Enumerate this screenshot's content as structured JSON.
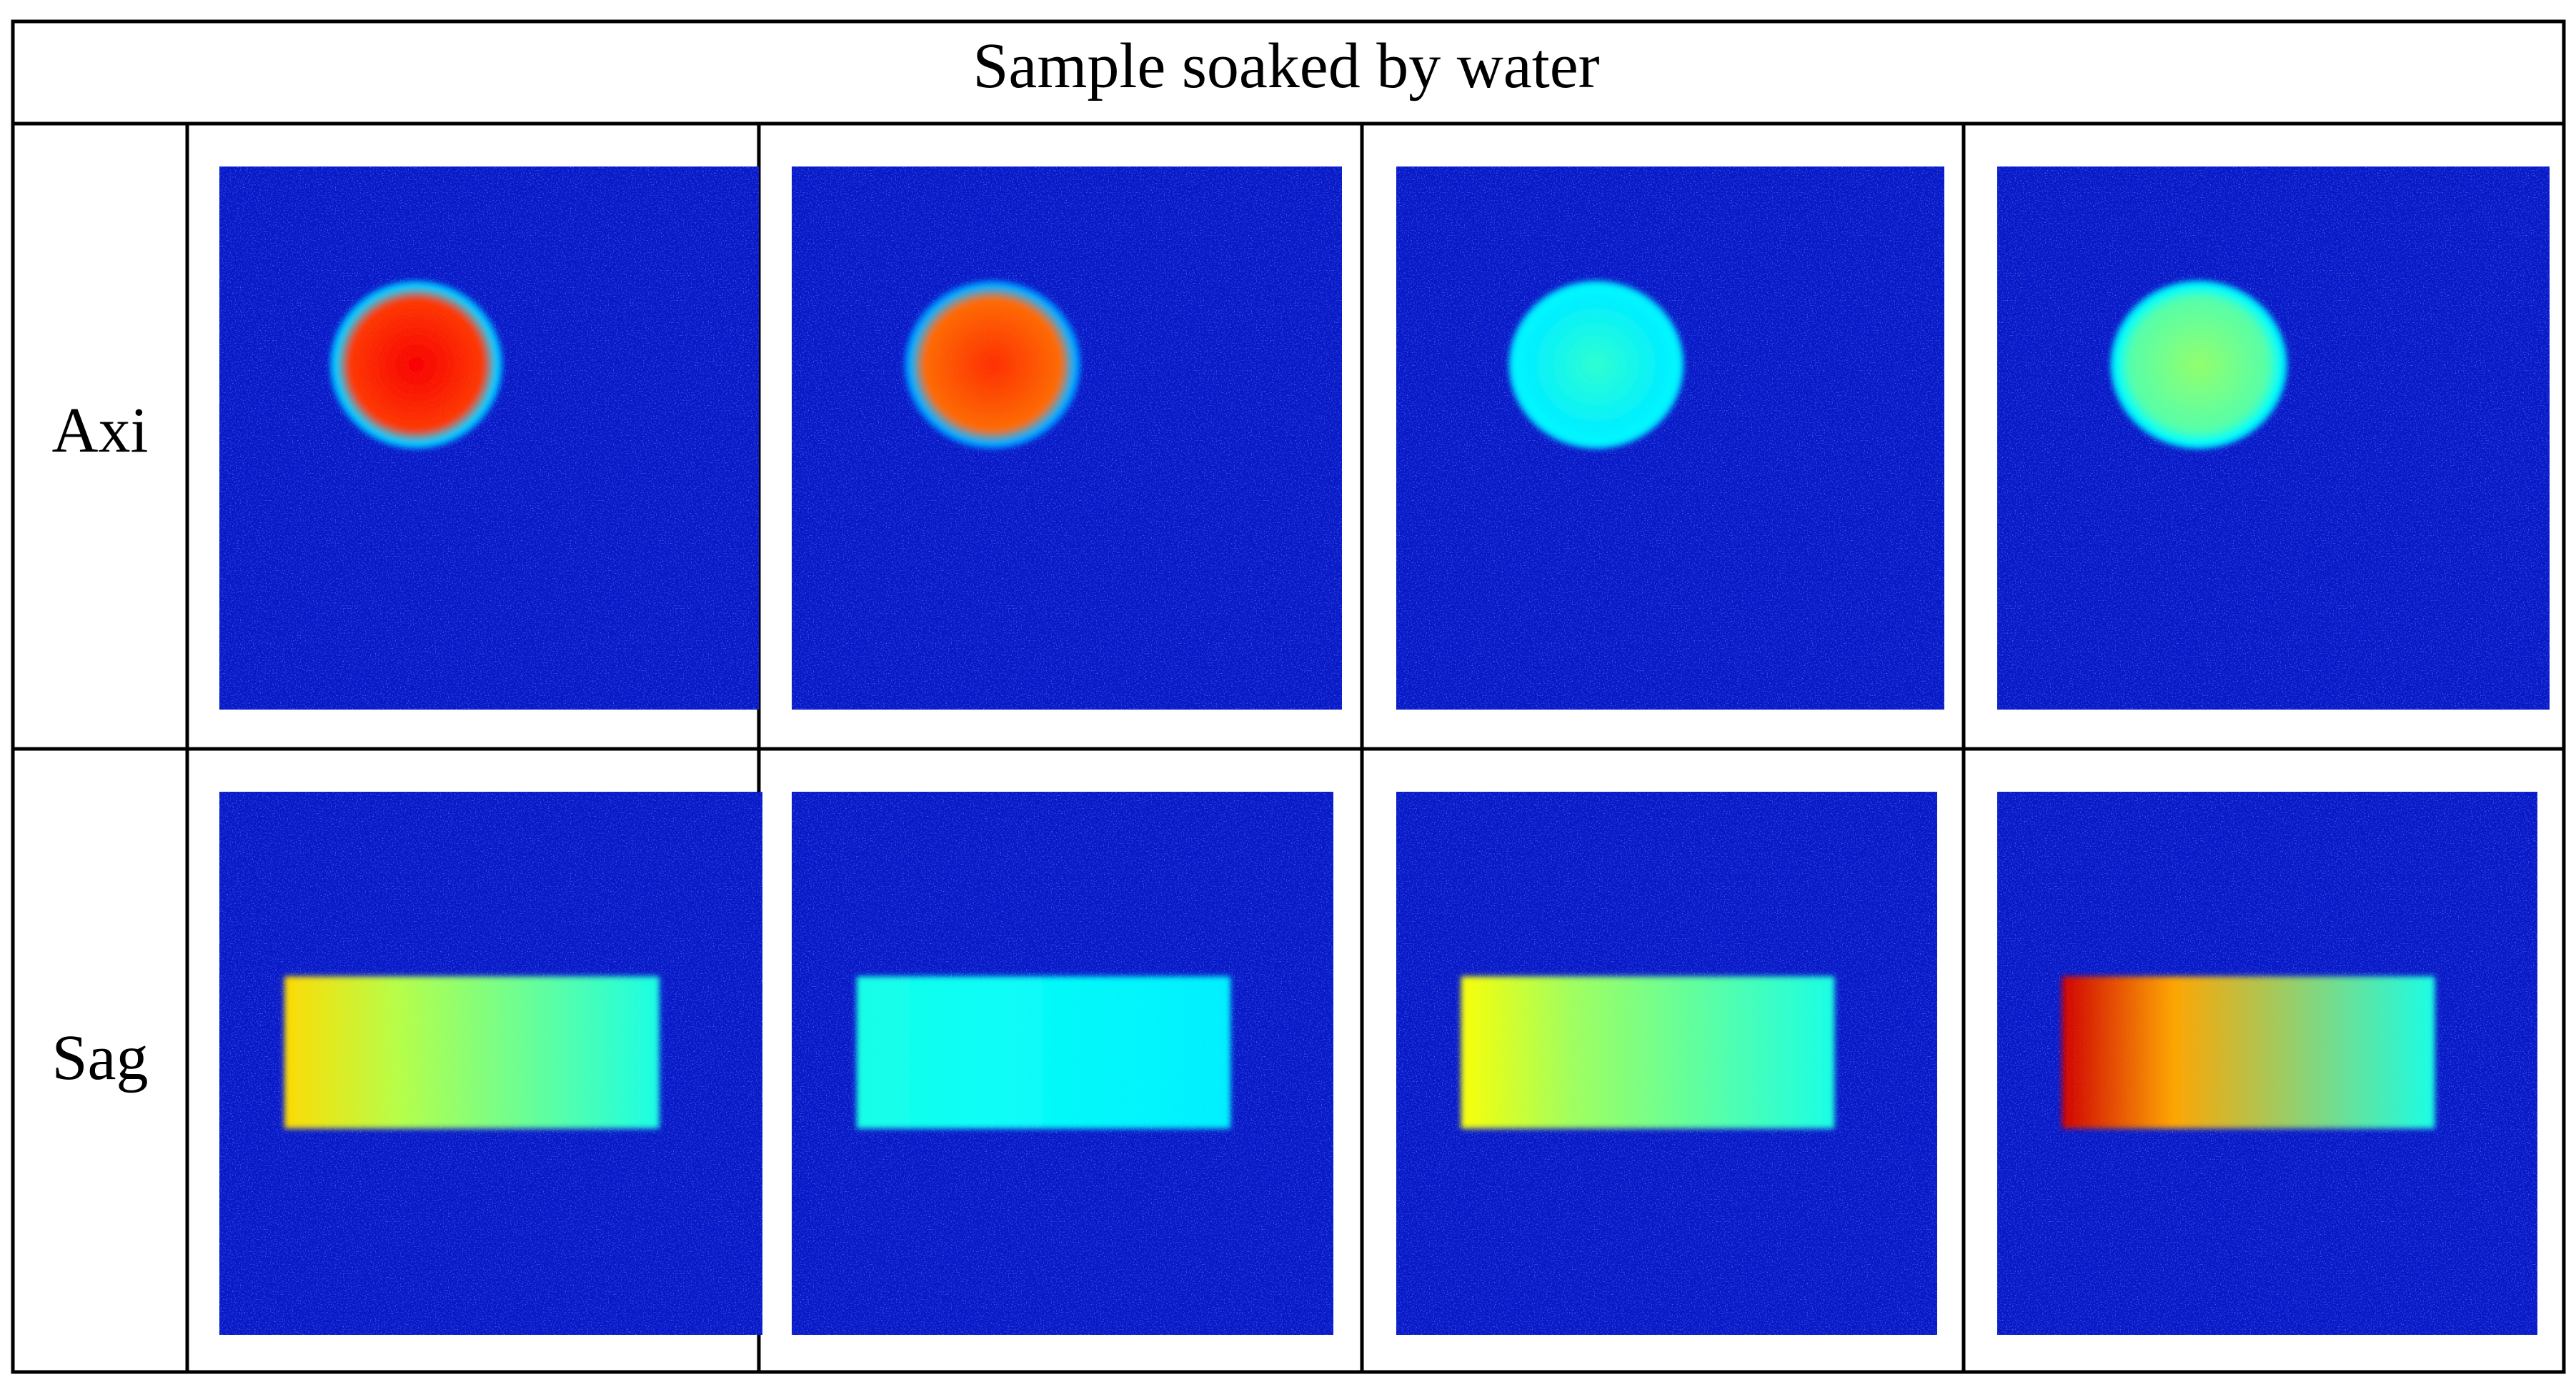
{
  "table": {
    "title": "Sample soaked by water",
    "rows": [
      {
        "label": "Axi",
        "view": "axial"
      },
      {
        "label": "Sag",
        "view": "sagittal"
      }
    ],
    "image_columns": 4
  },
  "colormap": {
    "name": "jet",
    "stops": [
      "#00007f",
      "#0000ff",
      "#007fff",
      "#00ffff",
      "#7fff7f",
      "#ffff00",
      "#ff7f00",
      "#ff0000",
      "#7f0000"
    ]
  },
  "images": {
    "axi": [
      {
        "shape": "disk",
        "edge_level": 0.33,
        "core_level": 0.88
      },
      {
        "shape": "disk",
        "edge_level": 0.3,
        "core_level": 0.83
      },
      {
        "shape": "disk",
        "edge_level": 0.37,
        "core_level": 0.42
      },
      {
        "shape": "disk",
        "edge_level": 0.38,
        "core_level": 0.52
      }
    ],
    "sag": [
      {
        "shape": "cylinder",
        "left_level": 0.66,
        "right_level": 0.4
      },
      {
        "shape": "cylinder",
        "left_level": 0.4,
        "right_level": 0.36
      },
      {
        "shape": "cylinder",
        "left_level": 0.62,
        "right_level": 0.4
      },
      {
        "shape": "cylinder",
        "left_level": 0.92,
        "right_level": 0.4
      }
    ]
  }
}
